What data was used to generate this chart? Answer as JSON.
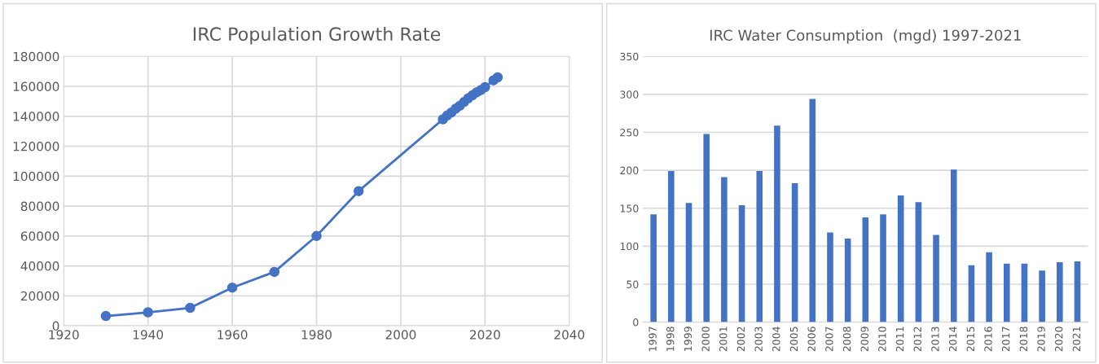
{
  "chart_data": [
    {
      "type": "line",
      "title": "IRC Population Growth Rate",
      "x": [
        1930,
        1940,
        1950,
        1960,
        1970,
        1980,
        1990,
        2010,
        2011,
        2012,
        2013,
        2014,
        2015,
        2016,
        2017,
        2018,
        2019,
        2020,
        2022,
        2023
      ],
      "series": [
        {
          "color": "#4472c4",
          "values": [
            6500,
            9000,
            12000,
            25500,
            36000,
            60000,
            90000,
            138000,
            140500,
            142500,
            145000,
            147000,
            149500,
            152000,
            154000,
            156000,
            157500,
            159500,
            164000,
            166000
          ]
        }
      ],
      "xlim": [
        1920,
        2040
      ],
      "xticks": [
        1920,
        1940,
        1960,
        1980,
        2000,
        2020,
        2040
      ],
      "ylim": [
        0,
        180000
      ],
      "yticks": [
        0,
        20000,
        40000,
        60000,
        80000,
        100000,
        120000,
        140000,
        160000,
        180000
      ],
      "grid": true,
      "marker": "circle",
      "line_style": "solid"
    },
    {
      "type": "bar",
      "title": "IRC Water Consumption  (mgd) 1997-2021",
      "categories": [
        "1997",
        "1998",
        "1999",
        "2000",
        "2001",
        "2002",
        "2003",
        "2004",
        "2005",
        "2006",
        "2007",
        "2008",
        "2009",
        "2010",
        "2011",
        "2012",
        "2013",
        "2014",
        "2015",
        "2016",
        "2017",
        "2018",
        "2019",
        "2020",
        "2021"
      ],
      "series": [
        {
          "color": "#4472c4",
          "values": [
            142,
            199,
            157,
            248,
            191,
            154,
            199,
            259,
            183,
            294,
            118,
            110,
            138,
            142,
            167,
            158,
            115,
            201,
            75,
            92,
            77,
            77,
            68,
            79,
            80
          ]
        }
      ],
      "ylim": [
        0,
        350
      ],
      "yticks": [
        0,
        50,
        100,
        150,
        200,
        250,
        300,
        350
      ],
      "grid": "y"
    }
  ]
}
